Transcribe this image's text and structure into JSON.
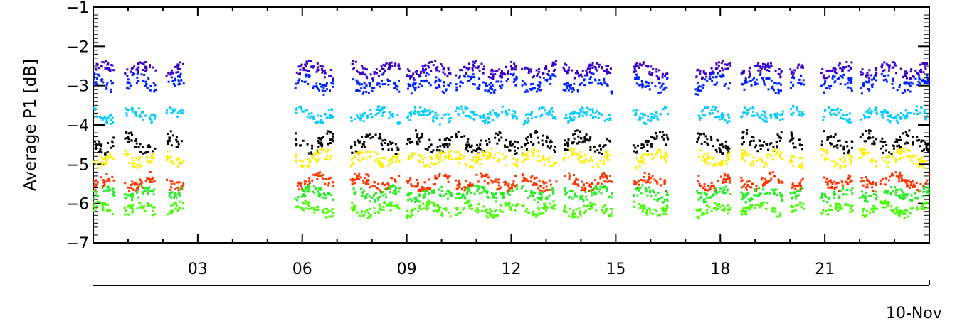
{
  "chart_data": {
    "type": "scatter",
    "title": "",
    "ylabel": "Average  P1  [dB]",
    "date_label": "10-Nov",
    "x_unit": "hour of day",
    "xlim": [
      0,
      24
    ],
    "ylim": [
      -7,
      -1
    ],
    "x_ticks": [
      {
        "value": 3,
        "label": "03"
      },
      {
        "value": 6,
        "label": "06"
      },
      {
        "value": 9,
        "label": "09"
      },
      {
        "value": 12,
        "label": "12"
      },
      {
        "value": 15,
        "label": "15"
      },
      {
        "value": 18,
        "label": "18"
      },
      {
        "value": 21,
        "label": "21"
      }
    ],
    "y_ticks": [
      {
        "value": -1,
        "label": "−1"
      },
      {
        "value": -2,
        "label": "−2"
      },
      {
        "value": -3,
        "label": "−3"
      },
      {
        "value": -4,
        "label": "−4"
      },
      {
        "value": -5,
        "label": "−5"
      },
      {
        "value": -6,
        "label": "−6"
      },
      {
        "value": -7,
        "label": "−7"
      }
    ],
    "data_segments_hours": [
      [
        0.0,
        0.6
      ],
      [
        0.9,
        1.8
      ],
      [
        2.1,
        2.6
      ],
      [
        5.8,
        6.9
      ],
      [
        7.4,
        8.8
      ],
      [
        9.0,
        10.3
      ],
      [
        10.4,
        12.2
      ],
      [
        12.3,
        13.3
      ],
      [
        13.5,
        14.9
      ],
      [
        15.5,
        16.5
      ],
      [
        17.3,
        18.3
      ],
      [
        18.6,
        19.8
      ],
      [
        20.0,
        20.4
      ],
      [
        20.9,
        21.8
      ],
      [
        22.0,
        22.5
      ],
      [
        22.6,
        24.0
      ]
    ],
    "series": [
      {
        "color": "#3a00c8",
        "level": -2.6,
        "spread": 0.18
      },
      {
        "color": "#0022ff",
        "level": -2.95,
        "spread": 0.22
      },
      {
        "color": "#00ccff",
        "level": -3.75,
        "spread": 0.18
      },
      {
        "color": "#000000",
        "level": -4.45,
        "spread": 0.25
      },
      {
        "color": "#ffee00",
        "level": -4.85,
        "spread": 0.2
      },
      {
        "color": "#ff3300",
        "level": -5.45,
        "spread": 0.2
      },
      {
        "color": "#22ee22",
        "level": -5.75,
        "spread": 0.17
      },
      {
        "color": "#44ff00",
        "level": -6.15,
        "spread": 0.17
      }
    ]
  }
}
